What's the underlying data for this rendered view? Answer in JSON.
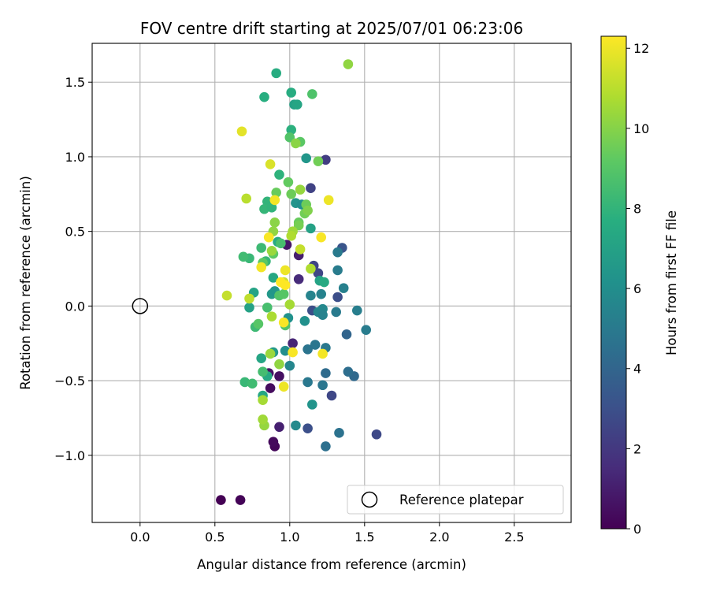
{
  "chart_data": {
    "type": "scatter",
    "title": "FOV centre drift starting at 2025/07/01 06:23:06",
    "xlabel": "Angular distance from reference (arcmin)",
    "ylabel": "Rotation from reference (arcmin)",
    "xlim": [
      -0.32,
      2.88
    ],
    "ylim": [
      -1.45,
      1.76
    ],
    "xticks": [
      0.0,
      0.5,
      1.0,
      1.5,
      2.0,
      2.5
    ],
    "xtick_labels": [
      "0.0",
      "0.5",
      "1.0",
      "1.5",
      "2.0",
      "2.5"
    ],
    "yticks": [
      -1.0,
      -0.5,
      0.0,
      0.5,
      1.0,
      1.5
    ],
    "ytick_labels": [
      "−1.0",
      "−0.5",
      "0.0",
      "0.5",
      "1.0",
      "1.5"
    ],
    "grid": true,
    "colormap": "viridis",
    "colorbar": {
      "label": "Hours from first FF file",
      "range": [
        0,
        12.3
      ],
      "ticks": [
        0,
        2,
        4,
        6,
        8,
        10,
        12
      ],
      "tick_labels": [
        "0",
        "2",
        "4",
        "6",
        "8",
        "10",
        "12"
      ]
    },
    "legend": {
      "position": "lower-right",
      "entries": [
        "Reference platepar"
      ]
    },
    "reference_point": {
      "x": 0.0,
      "y": 0.0
    },
    "points": [
      {
        "x": 0.54,
        "y": -1.3,
        "h": 0.0
      },
      {
        "x": 0.67,
        "y": -1.3,
        "h": 0.1
      },
      {
        "x": 0.9,
        "y": -0.94,
        "h": 0.2
      },
      {
        "x": 0.89,
        "y": -0.91,
        "h": 0.3
      },
      {
        "x": 0.87,
        "y": -0.55,
        "h": 0.4
      },
      {
        "x": 0.93,
        "y": -0.47,
        "h": 0.5
      },
      {
        "x": 0.86,
        "y": -0.45,
        "h": 0.6
      },
      {
        "x": 0.98,
        "y": 0.41,
        "h": 0.8
      },
      {
        "x": 1.06,
        "y": 0.34,
        "h": 1.0
      },
      {
        "x": 0.93,
        "y": -0.81,
        "h": 1.1
      },
      {
        "x": 1.02,
        "y": -0.25,
        "h": 1.3
      },
      {
        "x": 1.06,
        "y": 0.18,
        "h": 1.5
      },
      {
        "x": 1.24,
        "y": 0.98,
        "h": 2.2
      },
      {
        "x": 1.14,
        "y": 0.79,
        "h": 2.4
      },
      {
        "x": 1.28,
        "y": -0.6,
        "h": 2.6
      },
      {
        "x": 1.58,
        "y": -0.86,
        "h": 2.7
      },
      {
        "x": 1.16,
        "y": 0.27,
        "h": 2.5
      },
      {
        "x": 1.19,
        "y": 0.22,
        "h": 2.6
      },
      {
        "x": 1.12,
        "y": -0.82,
        "h": 3.0
      },
      {
        "x": 1.15,
        "y": -0.03,
        "h": 2.9
      },
      {
        "x": 1.32,
        "y": 0.06,
        "h": 2.9
      },
      {
        "x": 1.35,
        "y": 0.39,
        "h": 3.2
      },
      {
        "x": 1.38,
        "y": -0.19,
        "h": 4.0
      },
      {
        "x": 1.24,
        "y": -0.94,
        "h": 4.5
      },
      {
        "x": 1.33,
        "y": -0.85,
        "h": 4.6
      },
      {
        "x": 1.43,
        "y": -0.47,
        "h": 4.2
      },
      {
        "x": 1.39,
        "y": -0.44,
        "h": 4.4
      },
      {
        "x": 1.24,
        "y": -0.45,
        "h": 4.3
      },
      {
        "x": 1.22,
        "y": -0.53,
        "h": 4.8
      },
      {
        "x": 1.12,
        "y": -0.51,
        "h": 4.9
      },
      {
        "x": 1.17,
        "y": -0.26,
        "h": 4.8
      },
      {
        "x": 1.12,
        "y": -0.29,
        "h": 4.7
      },
      {
        "x": 1.24,
        "y": -0.28,
        "h": 4.9
      },
      {
        "x": 1.31,
        "y": -0.04,
        "h": 5.0
      },
      {
        "x": 1.51,
        "y": -0.16,
        "h": 5.1
      },
      {
        "x": 1.45,
        "y": -0.03,
        "h": 5.2
      },
      {
        "x": 1.32,
        "y": 0.36,
        "h": 5.0
      },
      {
        "x": 1.32,
        "y": 0.24,
        "h": 5.1
      },
      {
        "x": 1.36,
        "y": 0.12,
        "h": 5.3
      },
      {
        "x": 1.21,
        "y": 0.08,
        "h": 5.4
      },
      {
        "x": 1.14,
        "y": 0.07,
        "h": 5.5
      },
      {
        "x": 1.19,
        "y": -0.04,
        "h": 5.6
      },
      {
        "x": 1.22,
        "y": -0.02,
        "h": 5.7
      },
      {
        "x": 1.22,
        "y": -0.06,
        "h": 5.4
      },
      {
        "x": 1.04,
        "y": -0.8,
        "h": 5.8
      },
      {
        "x": 1.0,
        "y": -0.4,
        "h": 5.6
      },
      {
        "x": 0.97,
        "y": -0.3,
        "h": 6.0
      },
      {
        "x": 1.1,
        "y": -0.1,
        "h": 6.1
      },
      {
        "x": 0.99,
        "y": -0.08,
        "h": 6.2
      },
      {
        "x": 1.15,
        "y": -0.66,
        "h": 6.3
      },
      {
        "x": 0.88,
        "y": 0.08,
        "h": 6.5
      },
      {
        "x": 0.9,
        "y": 0.1,
        "h": 6.4
      },
      {
        "x": 0.89,
        "y": -0.31,
        "h": 6.6
      },
      {
        "x": 1.04,
        "y": 0.69,
        "h": 6.3
      },
      {
        "x": 1.08,
        "y": 0.68,
        "h": 6.1
      },
      {
        "x": 1.11,
        "y": 0.99,
        "h": 6.4
      },
      {
        "x": 1.03,
        "y": 1.35,
        "h": 7.0
      },
      {
        "x": 1.05,
        "y": 1.35,
        "h": 7.2
      },
      {
        "x": 1.14,
        "y": 0.52,
        "h": 7.0
      },
      {
        "x": 1.2,
        "y": 0.17,
        "h": 7.1
      },
      {
        "x": 1.23,
        "y": 0.16,
        "h": 7.4
      },
      {
        "x": 0.73,
        "y": -0.01,
        "h": 7.0
      },
      {
        "x": 0.76,
        "y": 0.09,
        "h": 7.1
      },
      {
        "x": 0.81,
        "y": -0.35,
        "h": 7.2
      },
      {
        "x": 0.82,
        "y": -0.6,
        "h": 7.3
      },
      {
        "x": 0.85,
        "y": -0.47,
        "h": 7.4
      },
      {
        "x": 0.89,
        "y": 0.19,
        "h": 7.3
      },
      {
        "x": 0.92,
        "y": 0.43,
        "h": 7.5
      },
      {
        "x": 0.91,
        "y": 1.56,
        "h": 7.6
      },
      {
        "x": 0.83,
        "y": 1.4,
        "h": 7.7
      },
      {
        "x": 1.01,
        "y": 1.43,
        "h": 7.6
      },
      {
        "x": 1.01,
        "y": 1.18,
        "h": 7.8
      },
      {
        "x": 0.93,
        "y": 0.88,
        "h": 7.9
      },
      {
        "x": 0.85,
        "y": 0.7,
        "h": 8.0
      },
      {
        "x": 0.83,
        "y": 0.65,
        "h": 8.1
      },
      {
        "x": 0.88,
        "y": 0.66,
        "h": 8.0
      },
      {
        "x": 0.73,
        "y": 0.32,
        "h": 8.2
      },
      {
        "x": 0.69,
        "y": 0.33,
        "h": 8.4
      },
      {
        "x": 0.81,
        "y": 0.39,
        "h": 8.3
      },
      {
        "x": 0.84,
        "y": 0.3,
        "h": 8.1
      },
      {
        "x": 0.7,
        "y": -0.51,
        "h": 8.2
      },
      {
        "x": 0.75,
        "y": -0.52,
        "h": 8.4
      },
      {
        "x": 0.82,
        "y": -0.44,
        "h": 8.5
      },
      {
        "x": 0.77,
        "y": -0.14,
        "h": 8.3
      },
      {
        "x": 0.85,
        "y": -0.01,
        "h": 8.6
      },
      {
        "x": 0.94,
        "y": 0.42,
        "h": 8.6
      },
      {
        "x": 1.0,
        "y": 1.13,
        "h": 8.9
      },
      {
        "x": 1.07,
        "y": 1.1,
        "h": 9.1
      },
      {
        "x": 1.15,
        "y": 1.42,
        "h": 8.8
      },
      {
        "x": 0.93,
        "y": 0.07,
        "h": 8.9
      },
      {
        "x": 0.96,
        "y": 0.08,
        "h": 9.0
      },
      {
        "x": 0.97,
        "y": -0.13,
        "h": 8.9
      },
      {
        "x": 0.79,
        "y": -0.12,
        "h": 9.0
      },
      {
        "x": 0.82,
        "y": 0.29,
        "h": 9.1
      },
      {
        "x": 0.89,
        "y": 0.35,
        "h": 9.2
      },
      {
        "x": 0.91,
        "y": 0.76,
        "h": 9.4
      },
      {
        "x": 0.99,
        "y": 0.83,
        "h": 9.3
      },
      {
        "x": 1.01,
        "y": 0.75,
        "h": 9.5
      },
      {
        "x": 1.06,
        "y": 0.56,
        "h": 9.4
      },
      {
        "x": 1.1,
        "y": 0.62,
        "h": 9.6
      },
      {
        "x": 1.11,
        "y": 0.68,
        "h": 9.5
      },
      {
        "x": 1.06,
        "y": 0.54,
        "h": 9.7
      },
      {
        "x": 1.19,
        "y": 0.97,
        "h": 9.6
      },
      {
        "x": 1.12,
        "y": 0.64,
        "h": 9.9
      },
      {
        "x": 1.39,
        "y": 1.62,
        "h": 10.2
      },
      {
        "x": 1.04,
        "y": 1.09,
        "h": 10.1
      },
      {
        "x": 1.07,
        "y": 0.78,
        "h": 10.3
      },
      {
        "x": 1.02,
        "y": 0.5,
        "h": 10.5
      },
      {
        "x": 0.9,
        "y": 0.56,
        "h": 10.1
      },
      {
        "x": 0.89,
        "y": 0.5,
        "h": 10.2
      },
      {
        "x": 0.88,
        "y": 0.37,
        "h": 10.4
      },
      {
        "x": 0.93,
        "y": -0.39,
        "h": 10.2
      },
      {
        "x": 0.87,
        "y": -0.32,
        "h": 10.4
      },
      {
        "x": 0.82,
        "y": -0.63,
        "h": 10.6
      },
      {
        "x": 0.83,
        "y": -0.8,
        "h": 10.3
      },
      {
        "x": 0.82,
        "y": -0.76,
        "h": 10.5
      },
      {
        "x": 0.88,
        "y": -0.07,
        "h": 10.7
      },
      {
        "x": 1.0,
        "y": 0.01,
        "h": 10.6
      },
      {
        "x": 1.14,
        "y": 0.25,
        "h": 10.8
      },
      {
        "x": 1.01,
        "y": 0.47,
        "h": 10.8
      },
      {
        "x": 0.71,
        "y": 0.72,
        "h": 11.0
      },
      {
        "x": 0.73,
        "y": 0.05,
        "h": 11.1
      },
      {
        "x": 0.58,
        "y": 0.07,
        "h": 11.2
      },
      {
        "x": 0.96,
        "y": 0.16,
        "h": 11.3
      },
      {
        "x": 1.07,
        "y": 0.38,
        "h": 11.2
      },
      {
        "x": 0.87,
        "y": 0.95,
        "h": 11.6
      },
      {
        "x": 0.68,
        "y": 1.17,
        "h": 11.8
      },
      {
        "x": 0.9,
        "y": 0.71,
        "h": 12.1
      },
      {
        "x": 1.26,
        "y": 0.71,
        "h": 12.0
      },
      {
        "x": 1.21,
        "y": 0.46,
        "h": 12.2
      },
      {
        "x": 0.86,
        "y": 0.46,
        "h": 12.2
      },
      {
        "x": 0.81,
        "y": 0.26,
        "h": 12.1
      },
      {
        "x": 0.97,
        "y": 0.24,
        "h": 12.0
      },
      {
        "x": 0.94,
        "y": 0.16,
        "h": 12.3
      },
      {
        "x": 0.97,
        "y": 0.14,
        "h": 12.3
      },
      {
        "x": 1.02,
        "y": -0.31,
        "h": 12.2
      },
      {
        "x": 1.22,
        "y": -0.32,
        "h": 12.1
      },
      {
        "x": 0.96,
        "y": -0.54,
        "h": 12.0
      },
      {
        "x": 0.96,
        "y": -0.11,
        "h": 12.2
      }
    ]
  }
}
